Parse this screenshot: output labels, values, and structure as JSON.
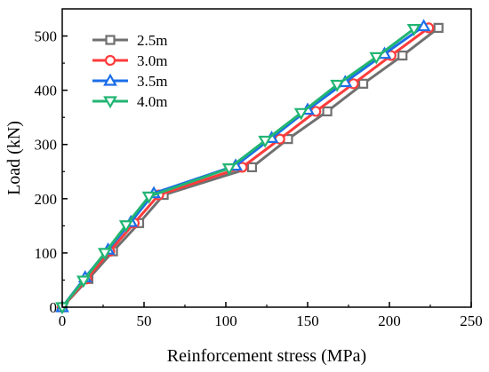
{
  "chart_data": {
    "type": "line",
    "xlabel": "Reinforcement stress (MPa)",
    "ylabel": "Load (kN)",
    "xlim": [
      0,
      250
    ],
    "ylim": [
      0,
      550
    ],
    "xticks": [
      0,
      50,
      100,
      150,
      200,
      250
    ],
    "yticks": [
      0,
      100,
      200,
      300,
      400,
      500
    ],
    "grid": false,
    "legend_position": "top-left",
    "series": [
      {
        "name": "2.5m",
        "color": "#707070",
        "marker": "square",
        "x": [
          0,
          16,
          31,
          47,
          62,
          116,
          138,
          162,
          184,
          208,
          230
        ],
        "y": [
          0,
          52,
          103,
          155,
          207,
          258,
          310,
          361,
          412,
          464,
          515
        ]
      },
      {
        "name": "3.0m",
        "color": "#ff3b3b",
        "marker": "circle",
        "x": [
          0,
          15,
          29,
          44,
          59,
          110,
          133,
          155,
          178,
          201,
          224
        ],
        "y": [
          0,
          52,
          103,
          155,
          207,
          258,
          310,
          361,
          412,
          464,
          515
        ]
      },
      {
        "name": "3.5m",
        "color": "#1c6ee8",
        "marker": "triangle-up",
        "x": [
          0,
          14,
          28,
          42,
          56,
          106,
          128,
          150,
          173,
          197,
          221
        ],
        "y": [
          0,
          55,
          106,
          157,
          210,
          261,
          312,
          364,
          415,
          467,
          518
        ]
      },
      {
        "name": "4.0m",
        "color": "#22b573",
        "marker": "triangle-down",
        "x": [
          0,
          13,
          26,
          39,
          53,
          102,
          124,
          146,
          168,
          192,
          215
        ],
        "y": [
          0,
          49,
          100,
          151,
          204,
          256,
          307,
          358,
          410,
          461,
          513
        ]
      }
    ]
  }
}
